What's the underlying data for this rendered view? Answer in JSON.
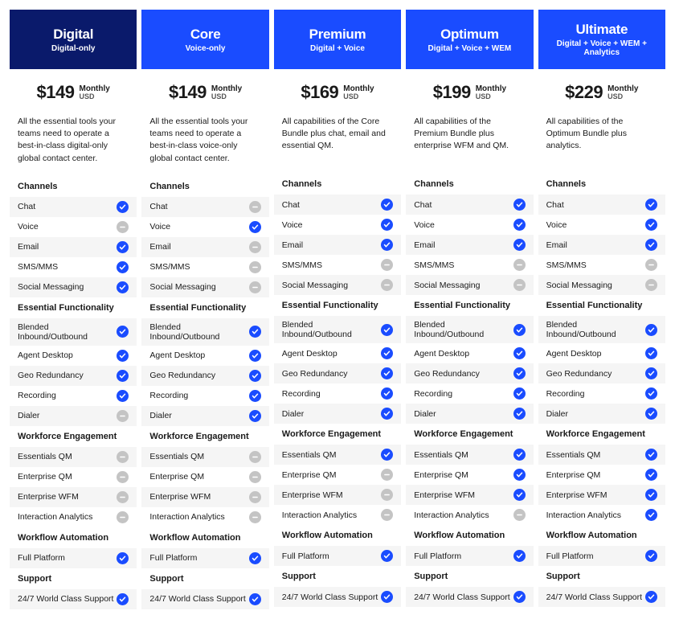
{
  "colors": {
    "header_featured_bg": "#0a1a6b",
    "header_std_bg": "#1a4cff",
    "header_text": "#ffffff",
    "row_alt_bg": "#f5f5f5",
    "icon_yes_bg": "#1a4cff",
    "icon_no_bg": "#c4c4c4",
    "icon_tick": "#ffffff"
  },
  "price_period_label": "Monthly",
  "price_currency_label": "USD",
  "plans": [
    {
      "name": "Digital",
      "subtitle": "Digital-only",
      "price": "$149",
      "desc": "All the essential tools your teams need to operate a best-in-class digital-only global contact center.",
      "featured": true
    },
    {
      "name": "Core",
      "subtitle": "Voice-only",
      "price": "$149",
      "desc": "All the essential tools your teams need to operate a best-in-class voice-only global contact center.",
      "featured": false
    },
    {
      "name": "Premium",
      "subtitle": "Digital + Voice",
      "price": "$169",
      "desc": "All capabilities of the Core Bundle plus chat, email and essential QM.",
      "featured": false
    },
    {
      "name": "Optimum",
      "subtitle": "Digital + Voice + WEM",
      "price": "$199",
      "desc": "All capabilities of the Premium Bundle plus enterprise WFM and QM.",
      "featured": false
    },
    {
      "name": "Ultimate",
      "subtitle": "Digital + Voice + WEM + Analytics",
      "price": "$229",
      "desc": "All capabilities of the Optimum Bundle plus analytics.",
      "featured": false
    }
  ],
  "sections": [
    {
      "title": "Channels",
      "features": [
        {
          "label": "Chat",
          "values": [
            true,
            false,
            true,
            true,
            true
          ]
        },
        {
          "label": "Voice",
          "values": [
            false,
            true,
            true,
            true,
            true
          ]
        },
        {
          "label": "Email",
          "values": [
            true,
            false,
            true,
            true,
            true
          ]
        },
        {
          "label": "SMS/MMS",
          "values": [
            true,
            false,
            false,
            false,
            false
          ]
        },
        {
          "label": "Social Messaging",
          "values": [
            true,
            false,
            false,
            false,
            false
          ]
        }
      ]
    },
    {
      "title": "Essential Functionality",
      "features": [
        {
          "label": "Blended Inbound/Outbound",
          "values": [
            true,
            true,
            true,
            true,
            true
          ]
        },
        {
          "label": "Agent Desktop",
          "values": [
            true,
            true,
            true,
            true,
            true
          ]
        },
        {
          "label": "Geo Redundancy",
          "values": [
            true,
            true,
            true,
            true,
            true
          ]
        },
        {
          "label": "Recording",
          "values": [
            true,
            true,
            true,
            true,
            true
          ]
        },
        {
          "label": "Dialer",
          "values": [
            false,
            true,
            true,
            true,
            true
          ]
        }
      ]
    },
    {
      "title": "Workforce Engagement",
      "features": [
        {
          "label": "Essentials QM",
          "values": [
            false,
            false,
            true,
            true,
            true
          ]
        },
        {
          "label": "Enterprise QM",
          "values": [
            false,
            false,
            false,
            true,
            true
          ]
        },
        {
          "label": "Enterprise WFM",
          "values": [
            false,
            false,
            false,
            true,
            true
          ]
        },
        {
          "label": "Interaction Analytics",
          "values": [
            false,
            false,
            false,
            false,
            true
          ]
        }
      ]
    },
    {
      "title": "Workflow Automation",
      "features": [
        {
          "label": "Full Platform",
          "values": [
            true,
            true,
            true,
            true,
            true
          ]
        }
      ]
    },
    {
      "title": "Support",
      "features": [
        {
          "label": "24/7 World Class Support",
          "values": [
            true,
            true,
            true,
            true,
            true
          ]
        }
      ]
    }
  ]
}
